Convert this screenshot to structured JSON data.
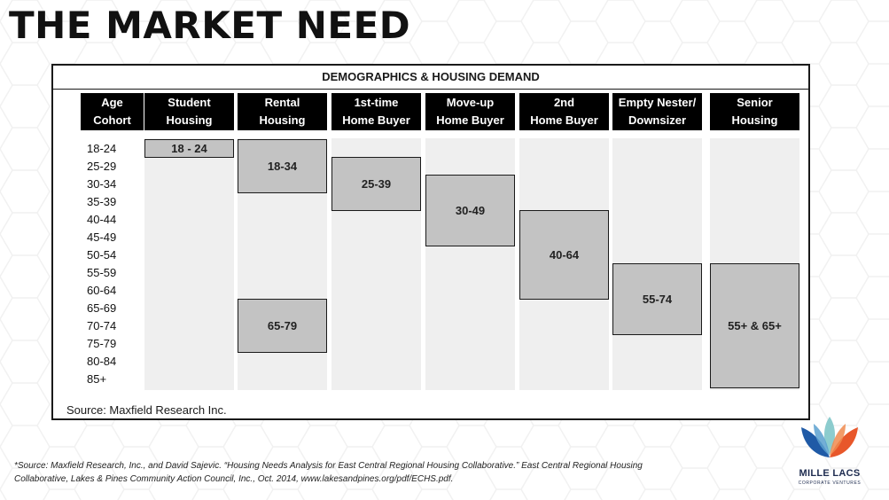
{
  "slide": {
    "title": "THE MARKET NEED"
  },
  "diagram": {
    "title": "DEMOGRAPHICS & HOUSING DEMAND",
    "columns": [
      {
        "line1": "Age",
        "line2": "Cohort"
      },
      {
        "line1": "Student",
        "line2": "Housing"
      },
      {
        "line1": "Rental",
        "line2": "Housing"
      },
      {
        "line1": "1st-time",
        "line2": "Home Buyer"
      },
      {
        "line1": "Move-up",
        "line2": "Home Buyer"
      },
      {
        "line1": "2nd",
        "line2": "Home Buyer"
      },
      {
        "line1": "Empty Nester/",
        "line2": "Downsizer"
      },
      {
        "line1": "Senior",
        "line2": "Housing"
      }
    ],
    "age_cohorts": [
      "18-24",
      "25-29",
      "30-34",
      "35-39",
      "40-44",
      "45-49",
      "50-54",
      "55-59",
      "60-64",
      "65-69",
      "70-74",
      "75-79",
      "80-84",
      "85+"
    ],
    "ranges": [
      {
        "column": 1,
        "label": "18 - 24",
        "start_row": 0,
        "end_row": 0
      },
      {
        "column": 2,
        "label": "18-34",
        "start_row": 0,
        "end_row": 2
      },
      {
        "column": 2,
        "label": "65-79",
        "start_row": 9,
        "end_row": 11
      },
      {
        "column": 3,
        "label": "25-39",
        "start_row": 1,
        "end_row": 3
      },
      {
        "column": 4,
        "label": "30-49",
        "start_row": 2,
        "end_row": 5
      },
      {
        "column": 5,
        "label": "40-64",
        "start_row": 4,
        "end_row": 8
      },
      {
        "column": 6,
        "label": "55-74",
        "start_row": 7,
        "end_row": 10
      },
      {
        "column": 7,
        "label": "55+ & 65+",
        "start_row": 7,
        "end_row": 13
      }
    ],
    "source": "Source:  Maxfield Research Inc."
  },
  "footnote": {
    "line1": "*Source: Maxfield Research, Inc., and David Sajevic. “Housing Needs Analysis for East Central Regional Housing Collaborative.” East Central Regional Housing",
    "line2": "Collaborative, Lakes & Pines Community Action Council, Inc., Oct. 2014, www.lakesandpines.org/pdf/ECHS.pdf."
  },
  "logo": {
    "name": "MILLE LACS",
    "tagline": "CORPORATE VENTURES",
    "icon": "lotus-logo-icon",
    "colors": {
      "blue": "#1f5aa6",
      "orange": "#e8572a",
      "teal": "#7fc7c9"
    }
  },
  "colors": {
    "header_bg": "#000000",
    "column_bg": "#efefef",
    "range_fill": "#c3c3c3",
    "range_border": "#1a1a1a"
  }
}
